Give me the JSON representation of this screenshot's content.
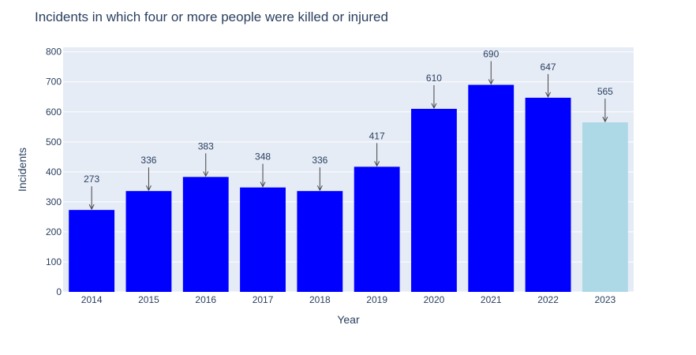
{
  "chart_data": {
    "type": "bar",
    "title": "Incidents in which four or more people were killed or injured",
    "xlabel": "Year",
    "ylabel": "Incidents",
    "categories": [
      "2014",
      "2015",
      "2016",
      "2017",
      "2018",
      "2019",
      "2020",
      "2021",
      "2022",
      "2023"
    ],
    "values": [
      273,
      336,
      383,
      348,
      336,
      417,
      610,
      690,
      647,
      565
    ],
    "bar_colors": [
      "#0000ff",
      "#0000ff",
      "#0000ff",
      "#0000ff",
      "#0000ff",
      "#0000ff",
      "#0000ff",
      "#0000ff",
      "#0000ff",
      "#add8e6"
    ],
    "ylim": [
      0,
      815
    ],
    "yticks": [
      0,
      100,
      200,
      300,
      400,
      500,
      600,
      700,
      800
    ],
    "grid": true,
    "annotations": [
      "273",
      "336",
      "383",
      "348",
      "336",
      "417",
      "610",
      "690",
      "647",
      "565"
    ]
  },
  "colors": {
    "plot_background": "#e5ecf6",
    "gridline": "#ffffff",
    "text": "#2a3f5f",
    "arrow": "#444444"
  }
}
